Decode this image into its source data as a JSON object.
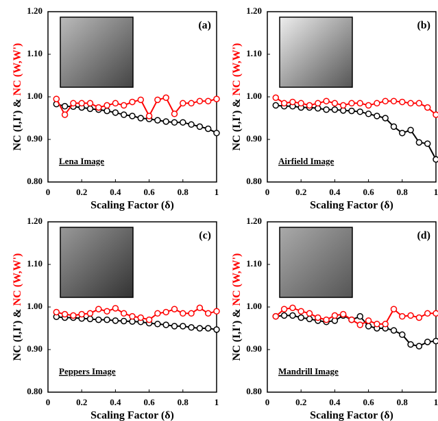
{
  "chart_data": [
    {
      "type": "line",
      "panel_label": "(a)",
      "annotation": "Lena Image",
      "xlabel": "Scaling Factor (δ)",
      "ylabel_connector": "&",
      "x": [
        0.05,
        0.1,
        0.15,
        0.2,
        0.25,
        0.3,
        0.35,
        0.4,
        0.45,
        0.5,
        0.55,
        0.6,
        0.65,
        0.7,
        0.75,
        0.8,
        0.85,
        0.9,
        0.95,
        1
      ],
      "series": [
        {
          "name": "NC (I,I')",
          "color": "#000000",
          "values": [
            0.983,
            0.978,
            0.977,
            0.975,
            0.972,
            0.97,
            0.967,
            0.963,
            0.958,
            0.955,
            0.95,
            0.948,
            0.945,
            0.942,
            0.94,
            0.94,
            0.935,
            0.93,
            0.925,
            0.915
          ]
        },
        {
          "name": "NC (W,W')",
          "color": "#ff0000",
          "values": [
            0.995,
            0.958,
            0.985,
            0.985,
            0.985,
            0.975,
            0.98,
            0.985,
            0.98,
            0.988,
            0.993,
            0.955,
            0.993,
            0.998,
            0.96,
            0.985,
            0.985,
            0.99,
            0.99,
            0.995
          ]
        }
      ],
      "xlim": [
        0,
        1
      ],
      "ylim": [
        0.8,
        1.2
      ],
      "xticks": [
        0,
        0.2,
        0.4,
        0.6,
        0.8,
        1
      ],
      "yticks": [
        {
          "value": 0.8,
          "label": "0.80"
        },
        {
          "value": 0.9,
          "label": "0.90"
        },
        {
          "value": 1.0,
          "label": "1.00"
        },
        {
          "value": 1.1,
          "label": "1.10"
        },
        {
          "value": 1.2,
          "label": "1.20"
        }
      ]
    },
    {
      "type": "line",
      "panel_label": "(b)",
      "annotation": "Airfield Image",
      "xlabel": "Scaling Factor (δ)",
      "ylabel_connector": "&",
      "x": [
        0.05,
        0.1,
        0.15,
        0.2,
        0.25,
        0.3,
        0.35,
        0.4,
        0.45,
        0.5,
        0.55,
        0.6,
        0.65,
        0.7,
        0.75,
        0.8,
        0.85,
        0.9,
        0.95,
        1
      ],
      "series": [
        {
          "name": "NC (I,I')",
          "color": "#000000",
          "values": [
            0.98,
            0.978,
            0.978,
            0.975,
            0.975,
            0.973,
            0.97,
            0.97,
            0.968,
            0.967,
            0.965,
            0.96,
            0.955,
            0.95,
            0.93,
            0.915,
            0.922,
            0.893,
            0.89,
            0.853
          ]
        },
        {
          "name": "NC (W,W')",
          "color": "#ff0000",
          "values": [
            0.998,
            0.985,
            0.988,
            0.985,
            0.98,
            0.985,
            0.99,
            0.985,
            0.98,
            0.985,
            0.985,
            0.98,
            0.985,
            0.99,
            0.99,
            0.988,
            0.985,
            0.985,
            0.975,
            0.958
          ]
        }
      ],
      "xlim": [
        0,
        1
      ],
      "ylim": [
        0.8,
        1.2
      ],
      "xticks": [
        0,
        0.2,
        0.4,
        0.6,
        0.8,
        1
      ],
      "yticks": [
        {
          "value": 0.8,
          "label": "0.80"
        },
        {
          "value": 0.9,
          "label": "0.90"
        },
        {
          "value": 1.0,
          "label": "1.00"
        },
        {
          "value": 1.1,
          "label": "1.10"
        },
        {
          "value": 1.2,
          "label": "1.20"
        }
      ]
    },
    {
      "type": "line",
      "panel_label": "(c)",
      "annotation": "Peppers Image",
      "xlabel": "Scaling Factor (δ)",
      "ylabel_connector": "&",
      "x": [
        0.05,
        0.1,
        0.15,
        0.2,
        0.25,
        0.3,
        0.35,
        0.4,
        0.45,
        0.5,
        0.55,
        0.6,
        0.65,
        0.7,
        0.75,
        0.8,
        0.85,
        0.9,
        0.95,
        1
      ],
      "series": [
        {
          "name": "NC (I,I')",
          "color": "#000000",
          "values": [
            0.977,
            0.975,
            0.975,
            0.973,
            0.972,
            0.97,
            0.97,
            0.968,
            0.967,
            0.966,
            0.965,
            0.962,
            0.96,
            0.958,
            0.955,
            0.955,
            0.952,
            0.95,
            0.95,
            0.947
          ]
        },
        {
          "name": "NC (W,W')",
          "color": "#ff0000",
          "values": [
            0.988,
            0.983,
            0.98,
            0.983,
            0.985,
            0.995,
            0.99,
            0.997,
            0.985,
            0.978,
            0.975,
            0.97,
            0.985,
            0.988,
            0.995,
            0.985,
            0.985,
            0.998,
            0.985,
            0.99
          ]
        }
      ],
      "xlim": [
        0,
        1
      ],
      "ylim": [
        0.8,
        1.2
      ],
      "xticks": [
        0,
        0.2,
        0.4,
        0.6,
        0.8,
        1
      ],
      "yticks": [
        {
          "value": 0.8,
          "label": "0.80"
        },
        {
          "value": 0.9,
          "label": "0.90"
        },
        {
          "value": 1.0,
          "label": "1.00"
        },
        {
          "value": 1.1,
          "label": "1.10"
        },
        {
          "value": 1.2,
          "label": "1.20"
        }
      ]
    },
    {
      "type": "line",
      "panel_label": "(d)",
      "annotation": "Mandrill Image",
      "xlabel": "Scaling Factor (δ)",
      "ylabel_connector": "&",
      "x": [
        0.05,
        0.1,
        0.15,
        0.2,
        0.25,
        0.3,
        0.35,
        0.4,
        0.45,
        0.5,
        0.55,
        0.6,
        0.65,
        0.7,
        0.75,
        0.8,
        0.85,
        0.9,
        0.95,
        1
      ],
      "series": [
        {
          "name": "NC (I,I')",
          "color": "#000000",
          "values": [
            0.978,
            0.98,
            0.98,
            0.975,
            0.972,
            0.968,
            0.965,
            0.968,
            0.98,
            0.97,
            0.978,
            0.955,
            0.95,
            0.95,
            0.945,
            0.935,
            0.912,
            0.908,
            0.918,
            0.92
          ]
        },
        {
          "name": "NC (W,W')",
          "color": "#ff0000",
          "values": [
            0.978,
            0.995,
            0.998,
            0.99,
            0.985,
            0.975,
            0.97,
            0.98,
            0.983,
            0.97,
            0.958,
            0.968,
            0.96,
            0.96,
            0.995,
            0.978,
            0.98,
            0.975,
            0.985,
            0.985
          ]
        }
      ],
      "xlim": [
        0,
        1
      ],
      "ylim": [
        0.8,
        1.2
      ],
      "xticks": [
        0,
        0.2,
        0.4,
        0.6,
        0.8,
        1
      ],
      "yticks": [
        {
          "value": 0.8,
          "label": "0.80"
        },
        {
          "value": 0.9,
          "label": "0.90"
        },
        {
          "value": 1.0,
          "label": "1.00"
        },
        {
          "value": 1.1,
          "label": "1.10"
        },
        {
          "value": 1.2,
          "label": "1.20"
        }
      ]
    }
  ]
}
